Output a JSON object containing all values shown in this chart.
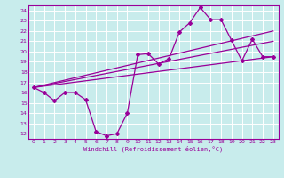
{
  "xlabel": "Windchill (Refroidissement éolien,°C)",
  "xlim": [
    -0.5,
    23.5
  ],
  "ylim": [
    11.5,
    24.5
  ],
  "yticks": [
    12,
    13,
    14,
    15,
    16,
    17,
    18,
    19,
    20,
    21,
    22,
    23,
    24
  ],
  "xticks": [
    0,
    1,
    2,
    3,
    4,
    5,
    6,
    7,
    8,
    9,
    10,
    11,
    12,
    13,
    14,
    15,
    16,
    17,
    18,
    19,
    20,
    21,
    22,
    23
  ],
  "bg_color": "#c8ecec",
  "grid_color": "#ffffff",
  "line_color": "#990099",
  "line1_x": [
    0,
    1,
    2,
    3,
    4,
    5,
    6,
    7,
    8,
    9,
    10,
    11,
    12,
    13,
    14,
    15,
    16,
    17,
    18,
    19,
    20,
    21,
    22,
    23
  ],
  "line1_y": [
    16.5,
    16.0,
    15.2,
    16.0,
    16.0,
    15.3,
    12.2,
    11.8,
    12.0,
    14.0,
    19.7,
    19.8,
    18.8,
    19.3,
    21.9,
    22.8,
    24.3,
    23.1,
    23.1,
    21.1,
    19.1,
    21.2,
    19.5,
    19.5
  ],
  "line2_x": [
    0,
    23
  ],
  "line2_y": [
    16.5,
    19.5
  ],
  "line3_x": [
    0,
    23
  ],
  "line3_y": [
    16.5,
    22.0
  ],
  "line4_x": [
    0,
    23
  ],
  "line4_y": [
    16.5,
    21.0
  ]
}
